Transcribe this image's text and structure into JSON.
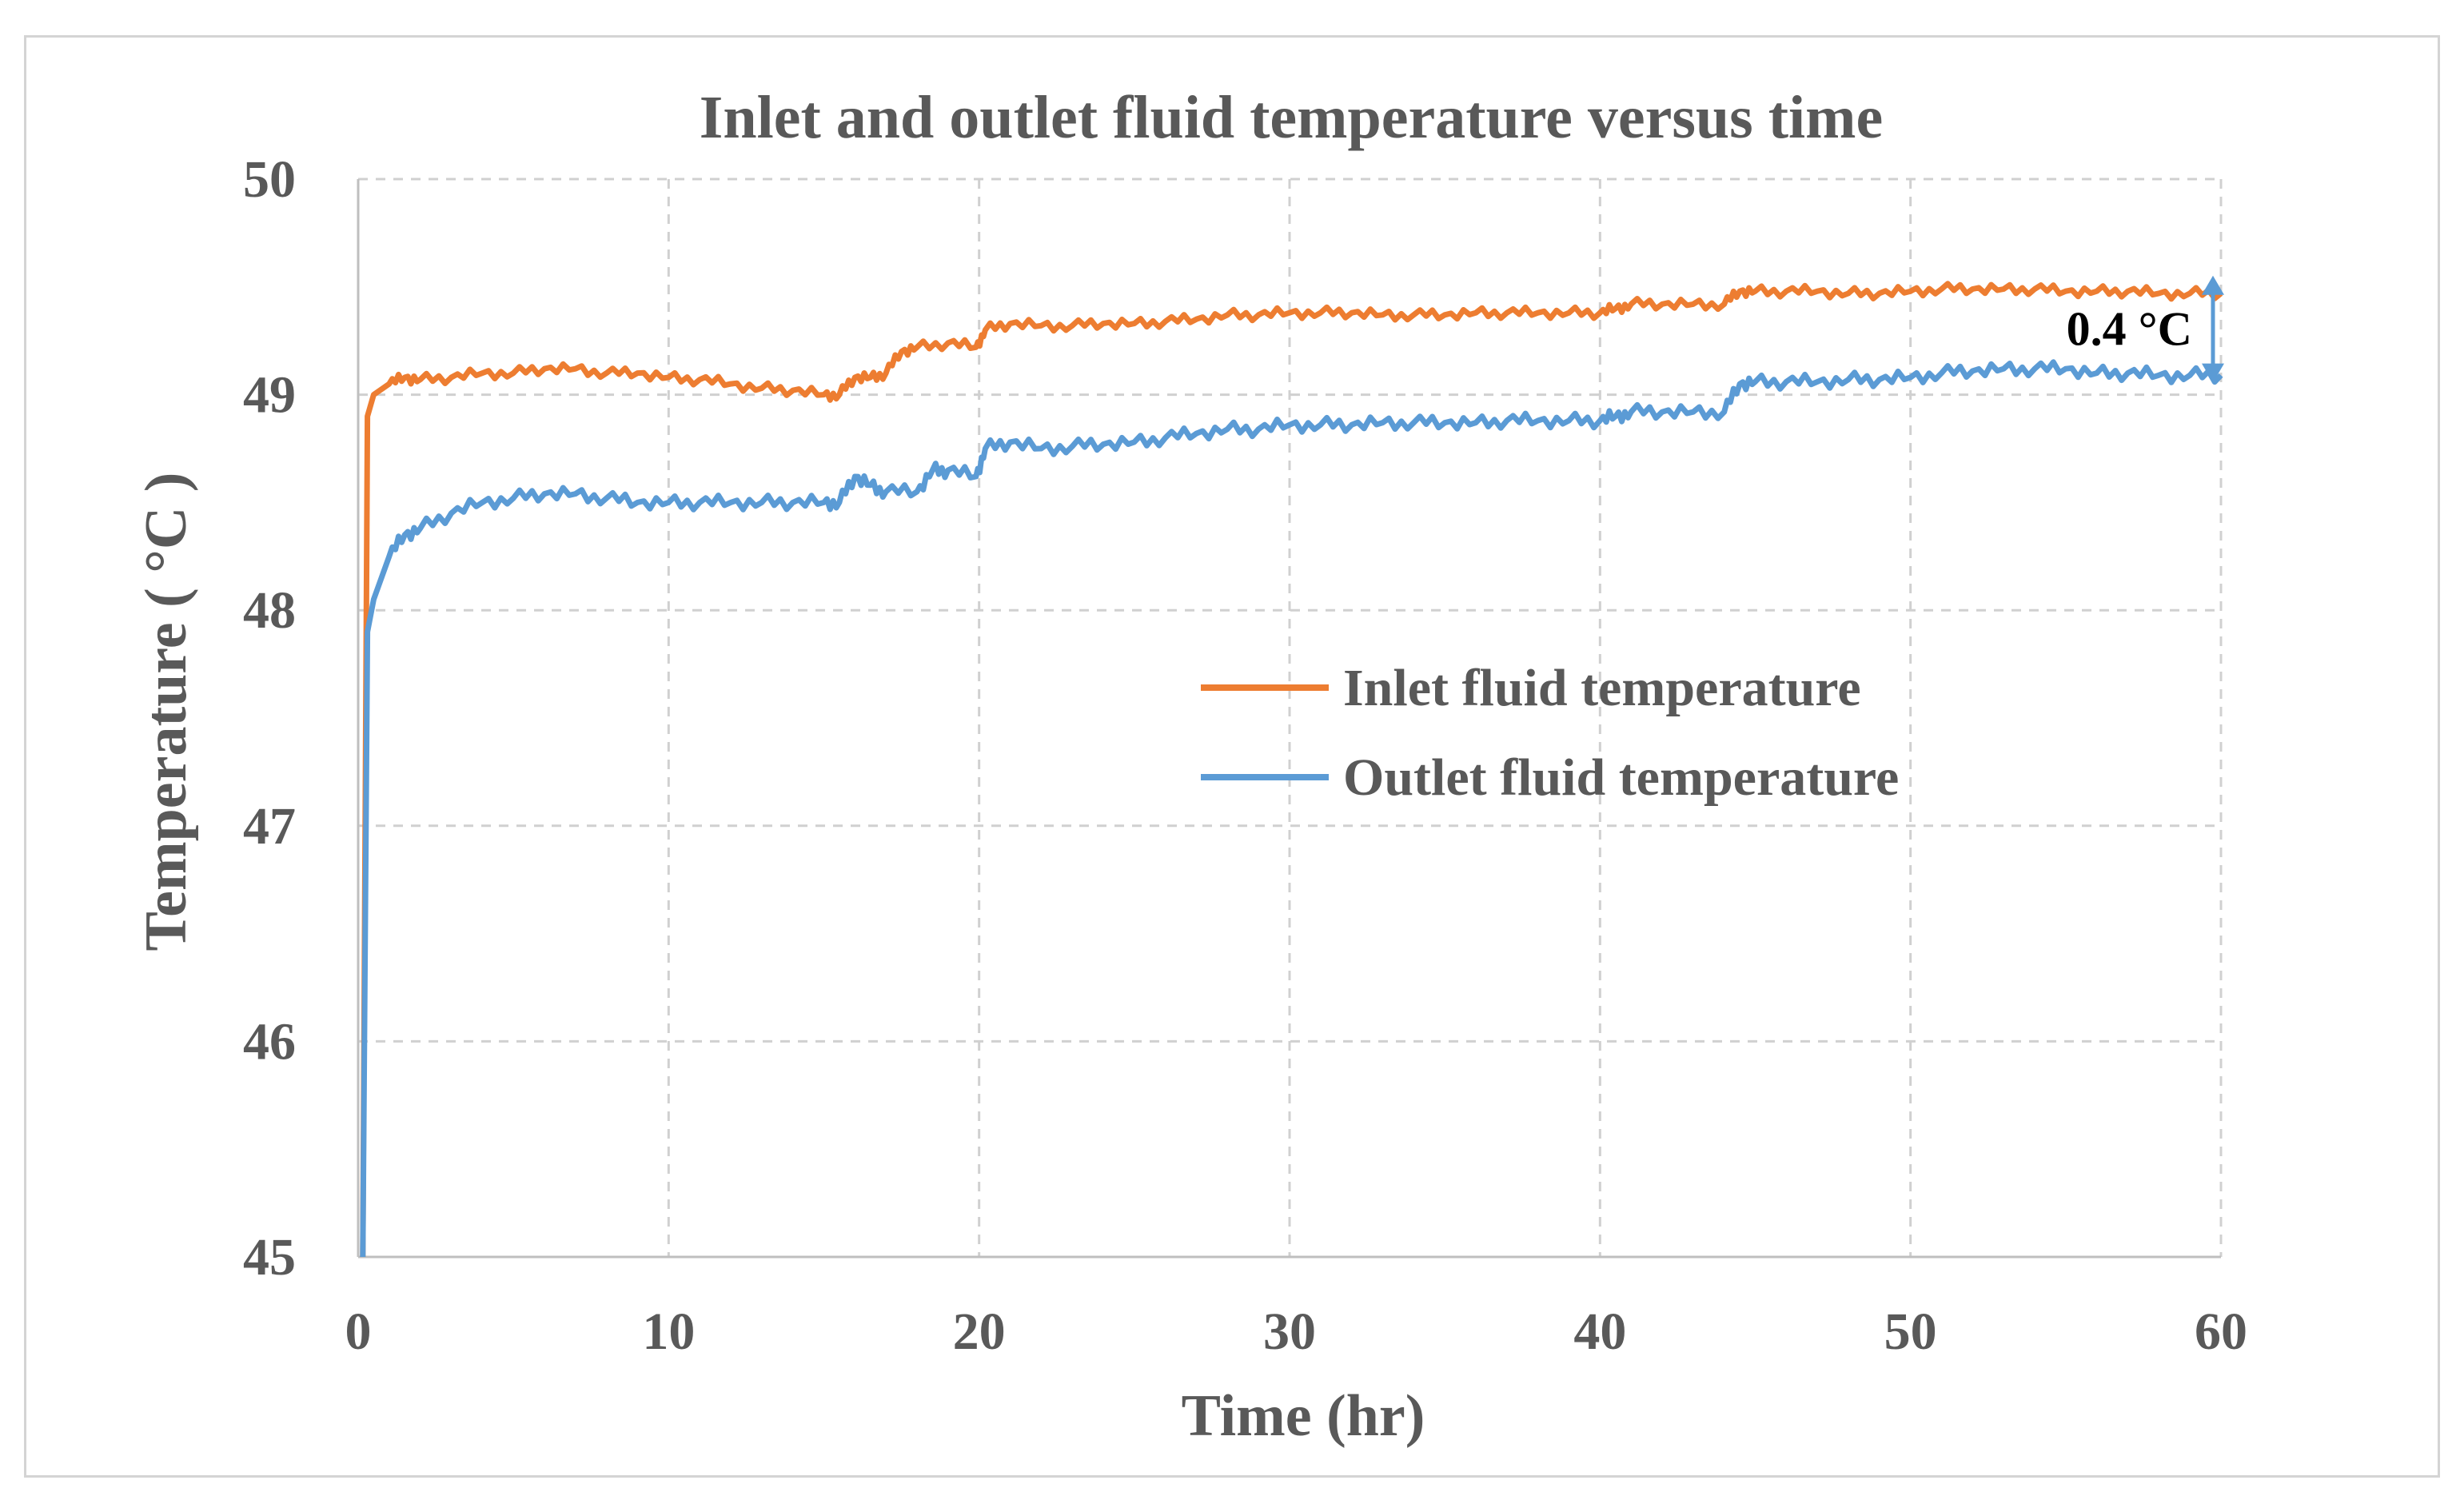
{
  "chart_data": {
    "type": "line",
    "title": "Inlet and outlet fluid temperature versus time",
    "xlabel": "Time (hr)",
    "ylabel": "Temperature ( °C )",
    "xlim": [
      0,
      60
    ],
    "ylim": [
      45,
      50
    ],
    "xticks": [
      0,
      10,
      20,
      30,
      40,
      50,
      60
    ],
    "yticks": [
      45,
      46,
      47,
      48,
      49,
      50
    ],
    "grid": true,
    "legend_position": "center-right",
    "annotation": {
      "text": "0.4 °C",
      "x": 60,
      "y_from": 49.1,
      "y_to": 49.5
    },
    "series": [
      {
        "name": "Inlet fluid temperature",
        "color": "#ED7D31",
        "x": [
          0.15,
          0.3,
          0.5,
          1,
          1.5,
          2,
          3,
          4,
          5,
          6,
          7,
          8,
          9,
          10,
          11,
          12,
          13,
          14,
          15,
          15.5,
          16,
          16.5,
          17,
          17.5,
          18,
          19,
          19.9,
          20.2,
          21,
          22,
          23,
          24,
          25,
          26,
          27,
          28,
          29,
          30,
          31,
          32,
          33,
          34,
          35,
          36,
          37,
          38,
          39,
          40,
          40.5,
          41,
          42,
          43,
          44,
          44.5,
          45,
          46,
          47,
          48,
          49,
          50,
          51,
          52,
          53,
          54,
          55,
          56,
          57,
          58,
          59,
          60
        ],
        "y": [
          45.0,
          48.9,
          49.0,
          49.05,
          49.08,
          49.07,
          49.08,
          49.1,
          49.1,
          49.12,
          49.12,
          49.1,
          49.1,
          49.08,
          49.07,
          49.05,
          49.03,
          49.02,
          49.0,
          49.0,
          49.08,
          49.08,
          49.1,
          49.2,
          49.22,
          49.24,
          49.22,
          49.3,
          49.33,
          49.32,
          49.32,
          49.33,
          49.33,
          49.34,
          49.35,
          49.37,
          49.37,
          49.38,
          49.38,
          49.38,
          49.37,
          49.37,
          49.37,
          49.38,
          49.38,
          49.38,
          49.38,
          49.38,
          49.4,
          49.42,
          49.42,
          49.42,
          49.42,
          49.48,
          49.48,
          49.48,
          49.48,
          49.47,
          49.47,
          49.48,
          49.49,
          49.49,
          49.49,
          49.49,
          49.48,
          49.48,
          49.48,
          49.47,
          49.47,
          49.47
        ]
      },
      {
        "name": "Outlet fluid temperature",
        "color": "#5B9BD5",
        "x": [
          0.15,
          0.3,
          0.5,
          1,
          1.5,
          2,
          3,
          4,
          5,
          6,
          7,
          8,
          9,
          10,
          11,
          12,
          13,
          14,
          15,
          15.5,
          16,
          16.5,
          17,
          18,
          18.5,
          19,
          19.9,
          20.2,
          21,
          22,
          23,
          24,
          25,
          26,
          27,
          28,
          29,
          30,
          31,
          32,
          33,
          34,
          35,
          36,
          37,
          38,
          39,
          40,
          40.5,
          41,
          42,
          43,
          44,
          44.5,
          45,
          46,
          47,
          48,
          49,
          50,
          51,
          52,
          53,
          54,
          55,
          56,
          57,
          58,
          59,
          60
        ],
        "y": [
          45.0,
          47.9,
          48.05,
          48.25,
          48.35,
          48.38,
          48.45,
          48.5,
          48.52,
          48.54,
          48.54,
          48.52,
          48.5,
          48.5,
          48.5,
          48.5,
          48.5,
          48.5,
          48.5,
          48.5,
          48.62,
          48.58,
          48.55,
          48.55,
          48.65,
          48.65,
          48.62,
          48.75,
          48.78,
          48.75,
          48.76,
          48.77,
          48.78,
          48.8,
          48.82,
          48.84,
          48.84,
          48.86,
          48.86,
          48.86,
          48.87,
          48.87,
          48.87,
          48.87,
          48.88,
          48.88,
          48.88,
          48.88,
          48.9,
          48.92,
          48.92,
          48.92,
          48.92,
          49.05,
          49.06,
          49.06,
          49.06,
          49.07,
          49.07,
          49.08,
          49.1,
          49.11,
          49.12,
          49.12,
          49.12,
          49.1,
          49.1,
          49.09,
          49.09,
          49.09
        ]
      }
    ]
  }
}
